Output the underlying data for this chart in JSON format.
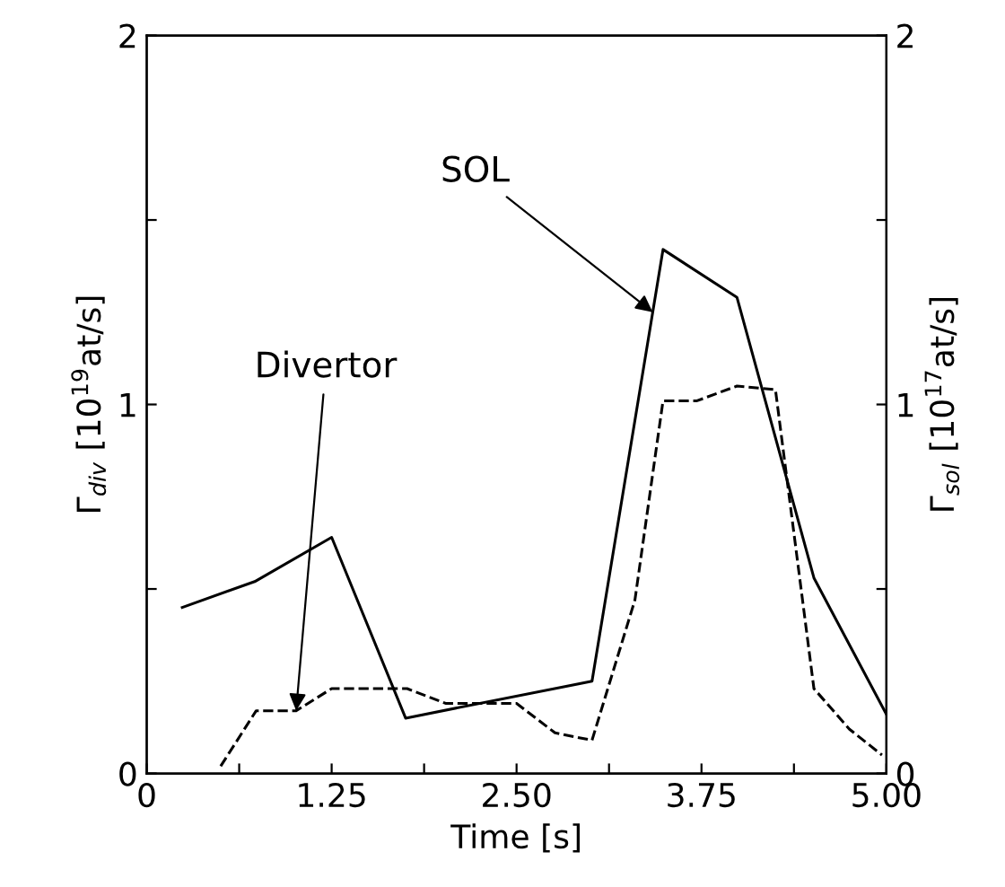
{
  "chart_data": {
    "type": "line",
    "xlabel": "Time [s]",
    "ylabel": "Γ$_{div}$ [10$^{19}$at/s]",
    "y2label": "Γ$_{sol}$ [10$^{17}$at/s]",
    "xlim": [
      0,
      5
    ],
    "xticks": [
      0,
      {
        "value": 0.625,
        "label": null
      },
      1.25,
      {
        "value": 1.875,
        "label": null
      },
      "2.50",
      {
        "value": 3.125,
        "label": null
      },
      3.75,
      {
        "value": 4.375,
        "label": null
      },
      "5.00"
    ],
    "ylim": [
      0,
      2
    ],
    "yticks": [
      0,
      {
        "value": 0.5,
        "label": null
      },
      1,
      {
        "value": 1.5,
        "label": null
      },
      2
    ],
    "y2lim": [
      0,
      2
    ],
    "y2ticks": [
      0,
      {
        "value": 0.5,
        "label": null
      },
      1,
      {
        "value": 1.5,
        "label": null
      },
      2
    ],
    "series": [
      {
        "color": "#000000",
        "line_style": "dashed",
        "x": [
          0.5,
          0.74,
          1.01,
          1.25,
          1.76,
          2.02,
          2.5,
          2.76,
          3.01,
          3.3,
          3.49,
          3.72,
          3.99,
          4.25,
          4.51,
          4.75,
          4.97
        ],
        "values": [
          0.02,
          0.17,
          0.17,
          0.23,
          0.23,
          0.19,
          0.19,
          0.11,
          0.09,
          0.47,
          1.01,
          1.01,
          1.05,
          1.04,
          0.23,
          0.12,
          0.05
        ]
      },
      {
        "color": "#000000",
        "line_style": "solid",
        "x": [
          0.24,
          0.73,
          1.25,
          1.75,
          3.01,
          3.49,
          3.99,
          4.51,
          5.0
        ],
        "values": [
          0.45,
          0.52,
          0.64,
          0.15,
          0.25,
          1.42,
          1.29,
          0.53,
          0.16
        ]
      }
    ],
    "annotations": [
      {
        "text": "SOL",
        "x": 3.42,
        "y": 1.25
      },
      {
        "text": "Divertor",
        "x": 1.01,
        "y": 0.17
      }
    ],
    "grid": false,
    "legend": false
  }
}
